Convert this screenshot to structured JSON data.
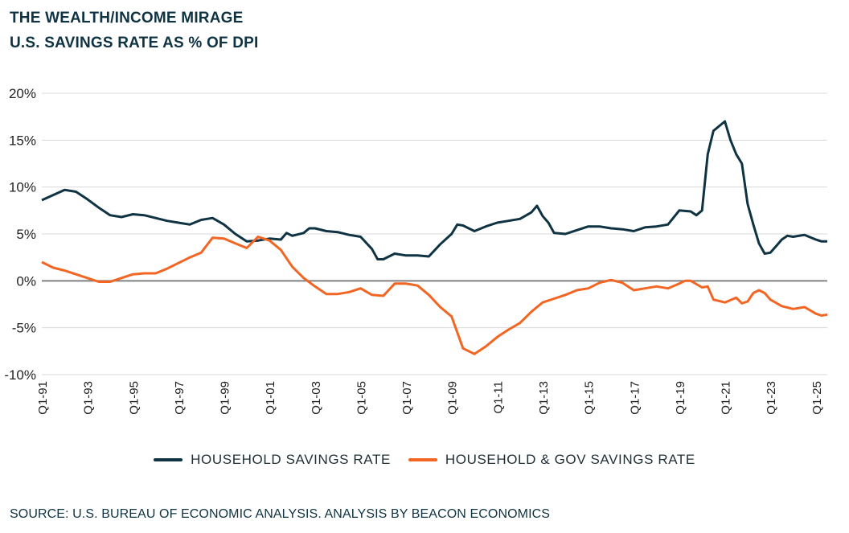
{
  "title_line1": "THE WEALTH/INCOME MIRAGE",
  "title_line2": "U.S. SAVINGS RATE AS % OF DPI",
  "source": "SOURCE: U.S. BUREAU OF ECONOMIC ANALYSIS. ANALYSIS BY BEACON ECONOMICS",
  "colors": {
    "household": "#0f3342",
    "household_gov": "#f26522",
    "grid": "#d9d9d9",
    "zero_line": "#808080"
  },
  "chart_data": {
    "type": "line",
    "title": "THE WEALTH/INCOME MIRAGE",
    "subtitle": "U.S. SAVINGS RATE AS % OF DPI",
    "xlabel": "",
    "ylabel": "",
    "ylim": [
      -10,
      20
    ],
    "y_ticks": [
      -10,
      -5,
      0,
      5,
      10,
      15,
      20
    ],
    "y_tick_labels": [
      "-10%",
      "-5%",
      "0%",
      "5%",
      "10%",
      "15%",
      "20%"
    ],
    "x_tick_labels": [
      "Q1-91",
      "Q1-93",
      "Q1-95",
      "Q1-97",
      "Q1-99",
      "Q1-01",
      "Q1-03",
      "Q1-05",
      "Q1-07",
      "Q1-09",
      "Q1-11",
      "Q1-13",
      "Q1-15",
      "Q1-17",
      "Q1-19",
      "Q1-21",
      "Q1-23",
      "Q1-25"
    ],
    "x_range": [
      "Q1-91",
      "Q3-25"
    ],
    "grid": "horizontal",
    "legend_position": "bottom",
    "series": [
      {
        "name": "HOUSEHOLD SAVINGS RATE",
        "points": [
          [
            "Q1-91",
            8.6
          ],
          [
            "Q1-92",
            9.7
          ],
          [
            "Q3-92",
            9.5
          ],
          [
            "Q1-93",
            8.7
          ],
          [
            "Q3-93",
            7.8
          ],
          [
            "Q1-94",
            7.0
          ],
          [
            "Q3-94",
            6.8
          ],
          [
            "Q1-95",
            7.1
          ],
          [
            "Q3-95",
            7.0
          ],
          [
            "Q1-96",
            6.7
          ],
          [
            "Q3-96",
            6.4
          ],
          [
            "Q1-97",
            6.2
          ],
          [
            "Q3-97",
            6.0
          ],
          [
            "Q1-98",
            6.5
          ],
          [
            "Q3-98",
            6.7
          ],
          [
            "Q1-99",
            6.0
          ],
          [
            "Q3-99",
            5.0
          ],
          [
            "Q1-00",
            4.2
          ],
          [
            "Q3-00",
            4.3
          ],
          [
            "Q1-01",
            4.5
          ],
          [
            "Q3-01",
            4.4
          ],
          [
            "Q4-01",
            5.1
          ],
          [
            "Q1-02",
            4.8
          ],
          [
            "Q3-02",
            5.1
          ],
          [
            "Q4-02",
            5.6
          ],
          [
            "Q1-03",
            5.6
          ],
          [
            "Q3-03",
            5.3
          ],
          [
            "Q1-04",
            5.2
          ],
          [
            "Q3-04",
            4.9
          ],
          [
            "Q1-05",
            4.7
          ],
          [
            "Q3-05",
            3.4
          ],
          [
            "Q4-05",
            2.3
          ],
          [
            "Q1-06",
            2.3
          ],
          [
            "Q3-06",
            2.9
          ],
          [
            "Q1-07",
            2.7
          ],
          [
            "Q3-07",
            2.7
          ],
          [
            "Q1-08",
            2.6
          ],
          [
            "Q3-08",
            3.9
          ],
          [
            "Q1-09",
            5.0
          ],
          [
            "Q2-09",
            6.0
          ],
          [
            "Q3-09",
            5.9
          ],
          [
            "Q1-10",
            5.3
          ],
          [
            "Q3-10",
            5.8
          ],
          [
            "Q1-11",
            6.2
          ],
          [
            "Q3-11",
            6.4
          ],
          [
            "Q1-12",
            6.6
          ],
          [
            "Q3-12",
            7.3
          ],
          [
            "Q4-12",
            8.0
          ],
          [
            "Q1-13",
            6.9
          ],
          [
            "Q2-13",
            6.2
          ],
          [
            "Q3-13",
            5.1
          ],
          [
            "Q1-14",
            5.0
          ],
          [
            "Q3-14",
            5.4
          ],
          [
            "Q1-15",
            5.8
          ],
          [
            "Q3-15",
            5.8
          ],
          [
            "Q1-16",
            5.6
          ],
          [
            "Q3-16",
            5.5
          ],
          [
            "Q1-17",
            5.3
          ],
          [
            "Q3-17",
            5.7
          ],
          [
            "Q1-18",
            5.8
          ],
          [
            "Q3-18",
            6.0
          ],
          [
            "Q1-19",
            7.5
          ],
          [
            "Q3-19",
            7.4
          ],
          [
            "Q4-19",
            7.0
          ],
          [
            "Q1-20",
            7.5
          ],
          [
            "Q2-20",
            13.5
          ],
          [
            "Q3-20",
            16.0
          ],
          [
            "Q1-21",
            17.0
          ],
          [
            "Q2-21",
            15.0
          ],
          [
            "Q3-21",
            13.5
          ],
          [
            "Q4-21",
            12.5
          ],
          [
            "Q1-22",
            8.2
          ],
          [
            "Q2-22",
            6.0
          ],
          [
            "Q3-22",
            4.0
          ],
          [
            "Q4-22",
            2.9
          ],
          [
            "Q1-23",
            3.0
          ],
          [
            "Q2-23",
            3.7
          ],
          [
            "Q3-23",
            4.4
          ],
          [
            "Q4-23",
            4.8
          ],
          [
            "Q1-24",
            4.7
          ],
          [
            "Q3-24",
            4.9
          ],
          [
            "Q1-25",
            4.4
          ],
          [
            "Q2-25",
            4.2
          ],
          [
            "Q3-25",
            4.2
          ]
        ]
      },
      {
        "name": "HOUSEHOLD & GOV SAVINGS RATE",
        "points": [
          [
            "Q1-91",
            2.0
          ],
          [
            "Q3-91",
            1.4
          ],
          [
            "Q1-92",
            1.1
          ],
          [
            "Q3-92",
            0.7
          ],
          [
            "Q1-93",
            0.3
          ],
          [
            "Q3-93",
            -0.1
          ],
          [
            "Q1-94",
            -0.1
          ],
          [
            "Q3-94",
            0.3
          ],
          [
            "Q1-95",
            0.7
          ],
          [
            "Q3-95",
            0.8
          ],
          [
            "Q1-96",
            0.8
          ],
          [
            "Q3-96",
            1.3
          ],
          [
            "Q1-97",
            1.9
          ],
          [
            "Q3-97",
            2.5
          ],
          [
            "Q1-98",
            3.0
          ],
          [
            "Q3-98",
            4.6
          ],
          [
            "Q1-99",
            4.5
          ],
          [
            "Q3-99",
            4.0
          ],
          [
            "Q1-00",
            3.5
          ],
          [
            "Q2-00",
            4.1
          ],
          [
            "Q3-00",
            4.7
          ],
          [
            "Q1-01",
            4.3
          ],
          [
            "Q3-01",
            3.3
          ],
          [
            "Q1-02",
            1.5
          ],
          [
            "Q3-02",
            0.3
          ],
          [
            "Q1-03",
            -0.6
          ],
          [
            "Q3-03",
            -1.4
          ],
          [
            "Q1-04",
            -1.4
          ],
          [
            "Q3-04",
            -1.2
          ],
          [
            "Q1-05",
            -0.8
          ],
          [
            "Q3-05",
            -1.5
          ],
          [
            "Q1-06",
            -1.6
          ],
          [
            "Q3-06",
            -0.3
          ],
          [
            "Q1-07",
            -0.3
          ],
          [
            "Q3-07",
            -0.5
          ],
          [
            "Q1-08",
            -1.5
          ],
          [
            "Q3-08",
            -2.8
          ],
          [
            "Q1-09",
            -3.8
          ],
          [
            "Q2-09",
            -5.5
          ],
          [
            "Q3-09",
            -7.2
          ],
          [
            "Q1-10",
            -7.8
          ],
          [
            "Q3-10",
            -7.0
          ],
          [
            "Q1-11",
            -6.0
          ],
          [
            "Q3-11",
            -5.2
          ],
          [
            "Q1-12",
            -4.5
          ],
          [
            "Q3-12",
            -3.3
          ],
          [
            "Q1-13",
            -2.3
          ],
          [
            "Q3-13",
            -1.9
          ],
          [
            "Q1-14",
            -1.5
          ],
          [
            "Q3-14",
            -1.0
          ],
          [
            "Q1-15",
            -0.8
          ],
          [
            "Q3-15",
            -0.2
          ],
          [
            "Q1-16",
            0.1
          ],
          [
            "Q3-16",
            -0.2
          ],
          [
            "Q1-17",
            -1.0
          ],
          [
            "Q3-17",
            -0.8
          ],
          [
            "Q1-18",
            -0.6
          ],
          [
            "Q3-18",
            -0.8
          ],
          [
            "Q1-19",
            -0.3
          ],
          [
            "Q2-19",
            0.0
          ],
          [
            "Q3-19",
            0.0
          ],
          [
            "Q1-20",
            -0.7
          ],
          [
            "Q2-20",
            -0.6
          ],
          [
            "Q3-20",
            -2.0
          ],
          [
            "Q1-21",
            -2.3
          ],
          [
            "Q3-21",
            -1.8
          ],
          [
            "Q4-21",
            -2.4
          ],
          [
            "Q1-22",
            -2.2
          ],
          [
            "Q2-22",
            -1.3
          ],
          [
            "Q3-22",
            -1.0
          ],
          [
            "Q4-22",
            -1.3
          ],
          [
            "Q1-23",
            -2.0
          ],
          [
            "Q3-23",
            -2.7
          ],
          [
            "Q1-24",
            -3.0
          ],
          [
            "Q3-24",
            -2.8
          ],
          [
            "Q1-25",
            -3.5
          ],
          [
            "Q2-25",
            -3.7
          ],
          [
            "Q3-25",
            -3.6
          ]
        ]
      }
    ]
  }
}
